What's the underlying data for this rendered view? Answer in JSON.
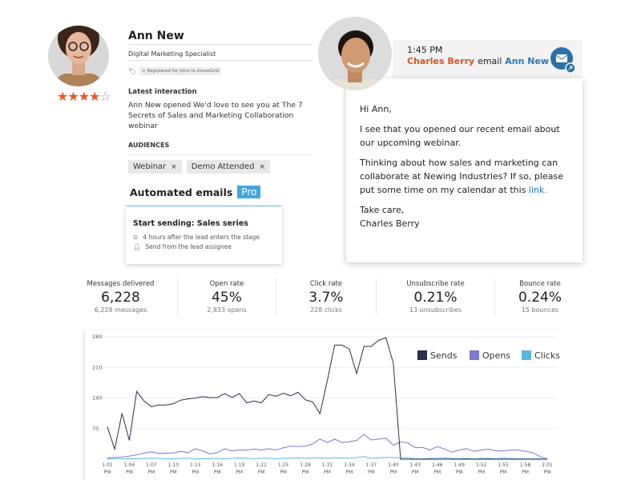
{
  "contact": {
    "name": "Ann New",
    "title": "Digital Marketing Specialist",
    "tag": "× Registered for Intro to ArrowGrid",
    "rating": 4,
    "rating_max": 5,
    "latest_label": "Latest interaction",
    "latest_text": "Ann New opened We'd love to see you at The 7 Secrets of Sales and Marketing Collaboration webinar",
    "audiences_label": "AUDIENCES",
    "audiences": [
      "Webinar",
      "Demo Attended"
    ],
    "remove_glyph": "×"
  },
  "automation": {
    "label": "Automated emails",
    "badge": "Pro",
    "card_title": "Start sending: Sales series",
    "rows": [
      {
        "icon": "clock-icon",
        "text": "4 hours after the lead enters the stage"
      },
      {
        "icon": "user-icon",
        "text": "Send from the lead assignee"
      }
    ]
  },
  "email": {
    "time": "1:45 PM",
    "sender": "Charles Berry",
    "verb": "email",
    "recipient": "Ann New",
    "greeting": "Hi Ann,",
    "p1": "I see that you opened our recent email about our upcoming webinar.",
    "p2_prefix": "Thinking about how sales and marketing can collaborate at Newing Industries? If so, please put some time on my calendar at this ",
    "link": "link.",
    "signoff": "Take care,",
    "signature": "Charles Berry",
    "colors": {
      "sender": "#d9541e",
      "recipient": "#2a77b8",
      "icon": "#2a6fa8"
    }
  },
  "metrics": [
    {
      "title": "Messages delivered",
      "value": "6,228",
      "sub": "6,228 messages"
    },
    {
      "title": "Open rate",
      "value": "45%",
      "sub": "2,833 opens"
    },
    {
      "title": "Click rate",
      "value": "3.7%",
      "sub": "228 clicks"
    },
    {
      "title": "Unsubscribe rate",
      "value": "0.21%",
      "sub": "13 unsubscribes"
    },
    {
      "title": "Bounce rate",
      "value": "0.24%",
      "sub": "15 bounces"
    }
  ],
  "chart_data": {
    "type": "line",
    "ylim": [
      0,
      280
    ],
    "yticks": [
      70,
      140,
      210,
      280
    ],
    "grid": true,
    "legend": "top-right",
    "xlabels": [
      "1:01 PM",
      "1:04 PM",
      "1:07 PM",
      "1:10 PM",
      "1:13 PM",
      "1:16 PM",
      "1:19 PM",
      "1:22 PM",
      "1:25 PM",
      "1:28 PM",
      "1:31 PM",
      "1:34 PM",
      "1:37 PM",
      "1:40 PM",
      "1:43 PM",
      "1:46 PM",
      "1:49 PM",
      "1:52 PM",
      "1:55 PM",
      "1:58 PM",
      "2:01 PM"
    ],
    "series": [
      {
        "name": "Sends",
        "color": "#2d2f4a",
        "values": [
          74,
          23,
          105,
          43,
          155,
          133,
          120,
          124,
          124,
          127,
          135,
          138,
          140,
          143,
          141,
          141,
          150,
          141,
          150,
          129,
          133,
          129,
          148,
          144,
          151,
          145,
          153,
          136,
          131,
          104,
          180,
          261,
          261,
          252,
          196,
          258,
          258,
          272,
          278,
          220,
          0,
          0,
          0,
          0,
          0,
          0,
          0,
          0,
          0,
          0,
          0,
          0,
          0,
          0,
          0,
          0,
          0,
          0,
          0,
          0,
          0
        ]
      },
      {
        "name": "Opens",
        "color": "#7b78d6",
        "values": [
          3,
          4,
          5,
          7,
          10,
          14,
          17,
          13,
          14,
          14,
          18,
          15,
          24,
          19,
          12,
          15,
          24,
          19,
          21,
          21,
          23,
          21,
          24,
          21,
          26,
          30,
          29,
          30,
          35,
          46,
          38,
          46,
          38,
          40,
          43,
          57,
          44,
          46,
          48,
          32,
          40,
          37,
          26,
          27,
          21,
          29,
          23,
          16,
          21,
          24,
          18,
          21,
          23,
          19,
          19,
          21,
          21,
          18,
          15,
          6,
          1
        ]
      },
      {
        "name": "Clicks",
        "color": "#5ab4e0",
        "values": [
          1,
          1,
          1,
          1,
          1,
          2,
          2,
          2,
          1,
          1,
          2,
          2,
          1,
          1,
          1,
          2,
          1,
          2,
          3,
          2,
          1,
          2,
          2,
          1,
          2,
          2,
          3,
          2,
          3,
          3,
          2,
          3,
          3,
          2,
          4,
          6,
          2,
          3,
          4,
          4,
          3,
          3,
          1,
          1,
          2,
          2,
          3,
          2,
          1,
          2,
          1,
          2,
          2,
          1,
          3,
          2,
          1,
          1,
          1,
          1,
          0
        ]
      }
    ]
  }
}
